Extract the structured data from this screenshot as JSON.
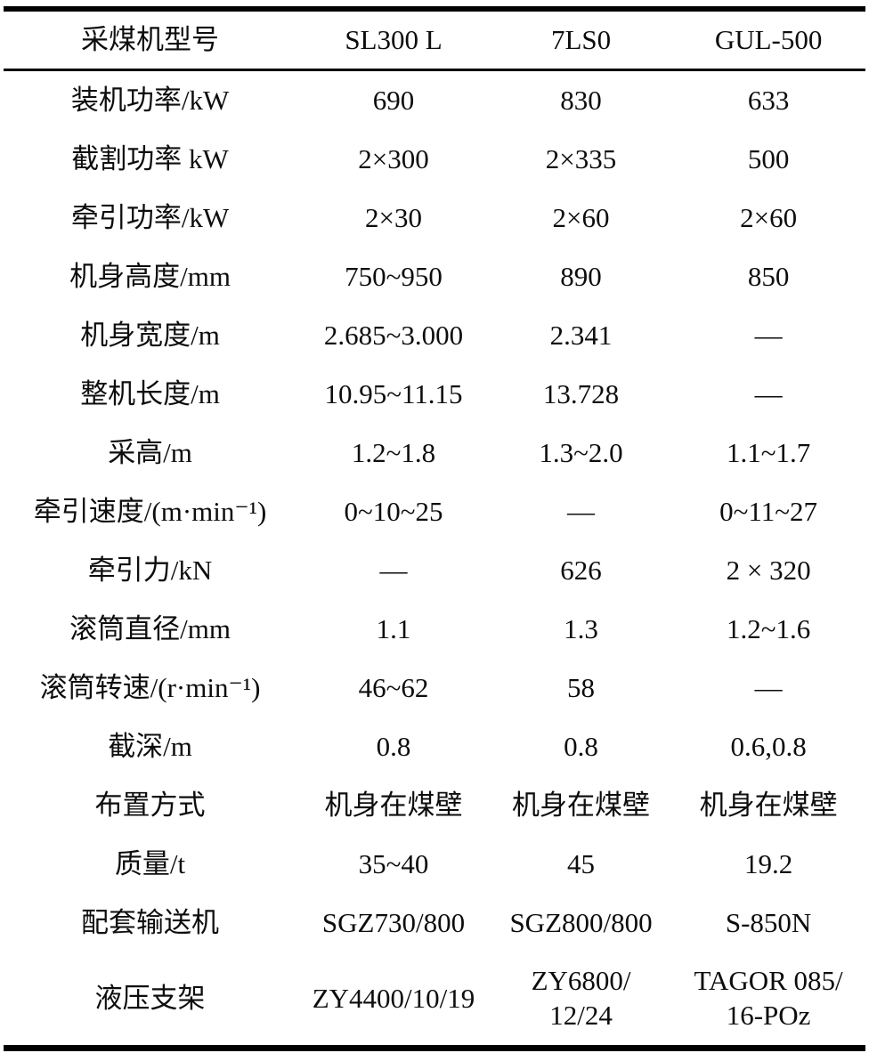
{
  "table": {
    "header": [
      "采煤机型号",
      "SL300 L",
      "7LS0",
      "GUL-500"
    ],
    "rows": [
      [
        "装机功率/kW",
        "690",
        "830",
        "633"
      ],
      [
        "截割功率 kW",
        "2×300",
        "2×335",
        "500"
      ],
      [
        "牵引功率/kW",
        "2×30",
        "2×60",
        "2×60"
      ],
      [
        "机身高度/mm",
        "750~950",
        "890",
        "850"
      ],
      [
        "机身宽度/m",
        "2.685~3.000",
        "2.341",
        "—"
      ],
      [
        "整机长度/m",
        "10.95~11.15",
        "13.728",
        "—"
      ],
      [
        "采高/m",
        "1.2~1.8",
        "1.3~2.0",
        "1.1~1.7"
      ],
      [
        "牵引速度/(m·min⁻¹)",
        "0~10~25",
        "—",
        "0~11~27"
      ],
      [
        "牵引力/kN",
        "—",
        "626",
        "2 × 320"
      ],
      [
        "滚筒直径/mm",
        "1.1",
        "1.3",
        "1.2~1.6"
      ],
      [
        "滚筒转速/(r·min⁻¹)",
        "46~62",
        "58",
        "—"
      ],
      [
        "截深/m",
        "0.8",
        "0.8",
        "0.6,0.8"
      ],
      [
        "布置方式",
        "机身在煤壁",
        "机身在煤壁",
        "机身在煤壁"
      ],
      [
        "质量/t",
        "35~40",
        "45",
        "19.2"
      ],
      [
        "配套输送机",
        "SGZ730/800",
        "SGZ800/800",
        "S-850N"
      ],
      [
        "液压支架",
        "ZY4400/10/19",
        "ZY6800/\n12/24",
        "TAGOR 085/\n16-POz"
      ]
    ]
  }
}
